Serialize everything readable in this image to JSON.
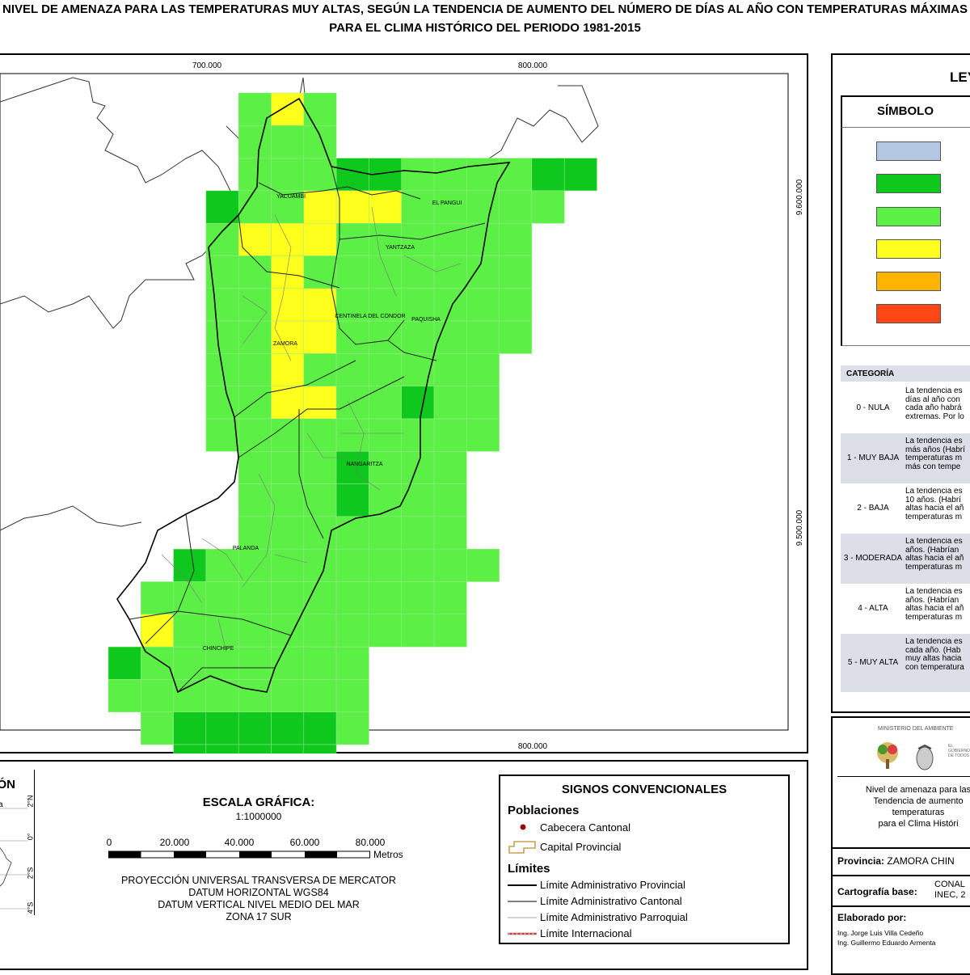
{
  "title": {
    "line1": "NIVEL DE AMENAZA PARA LAS TEMPERATURAS MUY ALTAS, SEGÚN LA TENDENCIA DE AUMENTO DEL NÚMERO DE DÍAS AL AÑO CON TEMPERATURAS MÁXIMAS",
    "line2": "PARA EL CLIMA HISTÓRICO DEL PERIODO 1981-2015"
  },
  "map": {
    "x_ticks": [
      "700.000",
      "800.000"
    ],
    "y_ticks": [
      "9.600.000",
      "9.500.000"
    ],
    "cantons": [
      {
        "name": "YACUAMBI"
      },
      {
        "name": "EL PANGUI"
      },
      {
        "name": "YANTZAZA"
      },
      {
        "name": "CENTINELA DEL CONDOR"
      },
      {
        "name": "PAQUISHA"
      },
      {
        "name": "ZAMORA"
      },
      {
        "name": "NANGARITZA"
      },
      {
        "name": "PALANDA"
      },
      {
        "name": "CHINCHIPE"
      }
    ],
    "colors": {
      "nula": "#b4c8e4",
      "muy_baja": "#0ec81e",
      "baja": "#5cf046",
      "moderada": "#ffff1e",
      "alta": "#ffb400",
      "muy_alta": "#ff4614"
    }
  },
  "legend": {
    "title": "LEYENDA",
    "symbol_header": "SÍMBOLO",
    "category_header": "CATEGORÍA",
    "categories": [
      {
        "name": "0 - NULA",
        "desc": [
          "La tendencia es",
          "días al año con",
          "cada año habrá",
          "extremas. Por lo"
        ]
      },
      {
        "name": "1 - MUY BAJA",
        "desc": [
          "La tendencia es",
          "más años (Habrí",
          "temperaturas m",
          "más con tempe"
        ]
      },
      {
        "name": "2 - BAJA",
        "desc": [
          "La tendencia es",
          "10 años. (Habrí",
          "altas hacia el añ",
          "temperaturas m"
        ]
      },
      {
        "name": "3 - MODERADA",
        "desc": [
          "La tendencia es",
          "años. (Habrían",
          "altas hacia el añ",
          "temperaturas m"
        ]
      },
      {
        "name": "4 - ALTA",
        "desc": [
          "La tendencia es",
          "años. (Habrían",
          "altas hacia el añ",
          "temperaturas m"
        ]
      },
      {
        "name": "5 - MUY ALTA",
        "desc": [
          "La tendencia es",
          "cada año. (Hab",
          "muy altas hacia",
          "con temperatura"
        ]
      }
    ]
  },
  "location": {
    "title": "UBICACIÓN",
    "lat_labels": [
      "2°N",
      "0°",
      "2°S",
      "4°S"
    ],
    "side_label": "a"
  },
  "scale": {
    "title": "ESCALA GRÁFICA:",
    "ratio": "1:1000000",
    "ticks": [
      "0",
      "20.000",
      "40.000",
      "60.000",
      "80.000"
    ],
    "unit": "Metros",
    "projection": [
      "PROYECCIÓN UNIVERSAL TRANSVERSA DE MERCATOR",
      "DATUM HORIZONTAL WGS84",
      "DATUM VERTICAL NIVEL MEDIO DEL MAR",
      "ZONA 17 SUR"
    ]
  },
  "signs": {
    "title": "SIGNOS CONVENCIONALES",
    "poblaciones": "Poblaciones",
    "cabecera": "Cabecera Cantonal",
    "capital": "Capital Provincial",
    "limites": "Límites",
    "lim_prov": "Límite Administrativo Provincial",
    "lim_cant": "Límite Administrativo Cantonal",
    "lim_parr": "Límite Administrativo Parroquial",
    "lim_int": "Límite Internacional"
  },
  "info": {
    "ministry": "MINISTERIO DEL AMBIENTE",
    "gov": [
      "EL",
      "GOBIERNO",
      "DE TODOS"
    ],
    "description": [
      "Nivel de amenaza para las",
      "Tendencia de aumento",
      "temperaturas",
      "para el Clima Históri"
    ],
    "provincia_label": "Provincia:",
    "provincia_value": "ZAMORA CHIN",
    "cartografia_label": "Cartografía base:",
    "cartografia_value": [
      "CONAL",
      "INEC, 2"
    ],
    "elaborado_label": "Elaborado por:",
    "authors": [
      "Ing. Jorge Luis Villa Cedeño",
      "Ing. Guillermo Eduardo Armenta"
    ]
  }
}
